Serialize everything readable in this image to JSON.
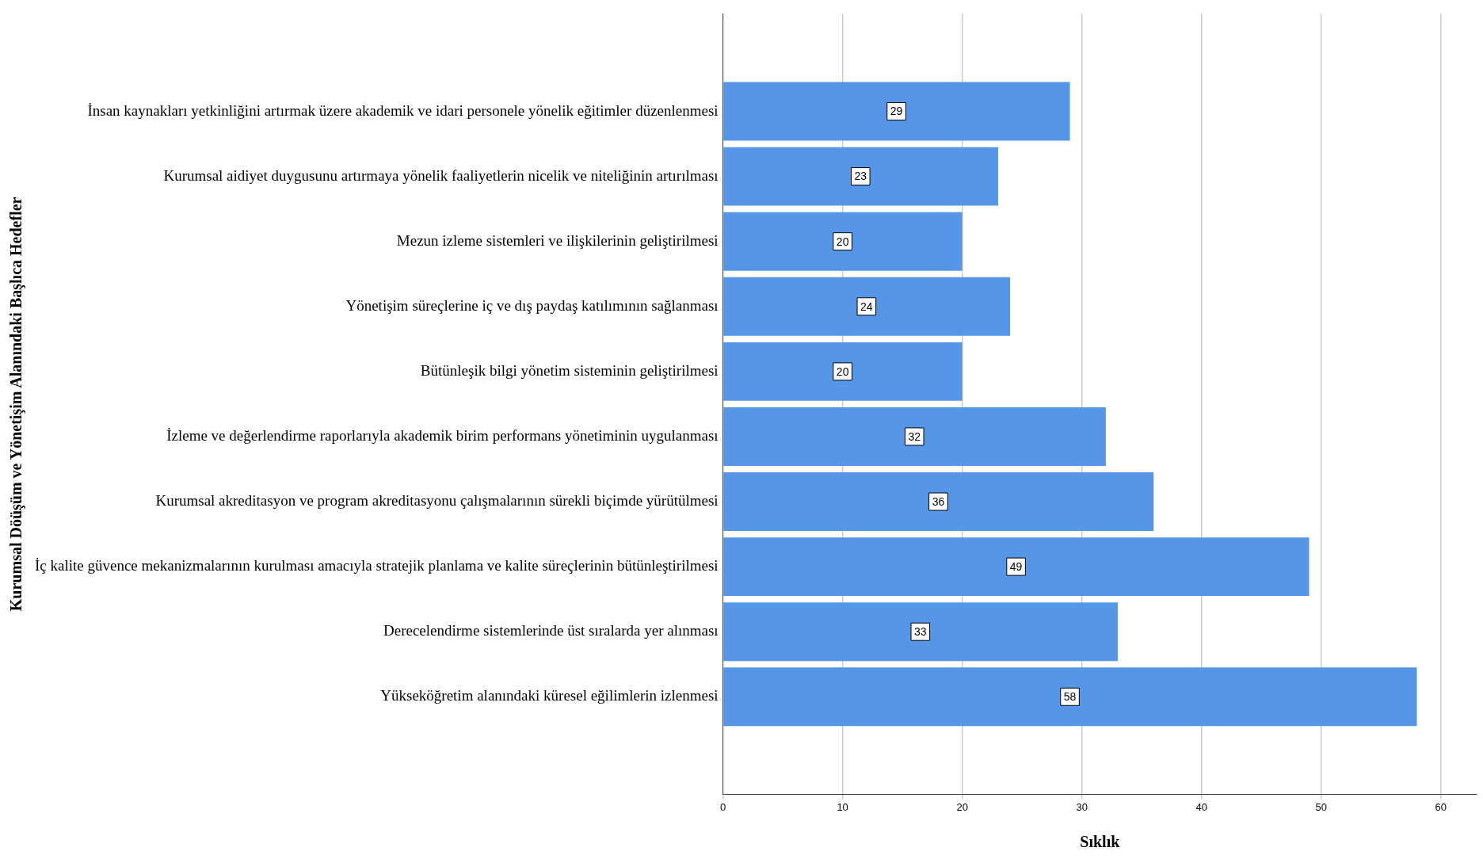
{
  "chart_data": {
    "type": "bar",
    "orientation": "horizontal",
    "xlabel": "Sıklık",
    "ylabel": "Kurumsal Döüşüm ve Yönetişim Alanındaki Başlıca Hedefler",
    "categories": [
      "İnsan kaynakları yetkinliğini artırmak üzere akademik ve idari personele yönelik eğitimler düzenlenmesi",
      "Kurumsal aidiyet duygusunu artırmaya yönelik faaliyetlerin nicelik ve niteliğinin artırılması",
      "Mezun izleme sistemleri ve ilişkilerinin geliştirilmesi",
      "Yönetişim süreçlerine iç ve dış paydaş katılımının sağlanması",
      "Bütünleşik bilgi yönetim sisteminin geliştirilmesi",
      "İzleme ve değerlendirme raporlarıyla akademik birim performans yönetiminin uygulanması",
      "Kurumsal akreditasyon ve program akreditasyonu çalışmalarının sürekli biçimde yürütülmesi",
      "İç kalite güvence mekanizmalarının kurulması amacıyla stratejik planlama ve kalite süreçlerinin bütünleştirilmesi",
      "Derecelendirme sistemlerinde üst sıralarda yer alınması",
      "Yükseköğretim alanındaki küresel eğilimlerin izlenmesi"
    ],
    "values": [
      29,
      23,
      20,
      24,
      20,
      32,
      36,
      49,
      33,
      58
    ],
    "color": "#5596e6",
    "xlim": [
      0,
      63
    ],
    "xticks": [
      0,
      10,
      20,
      30,
      40,
      50,
      60
    ],
    "grid": "x",
    "data_labels": true,
    "legend": false
  }
}
